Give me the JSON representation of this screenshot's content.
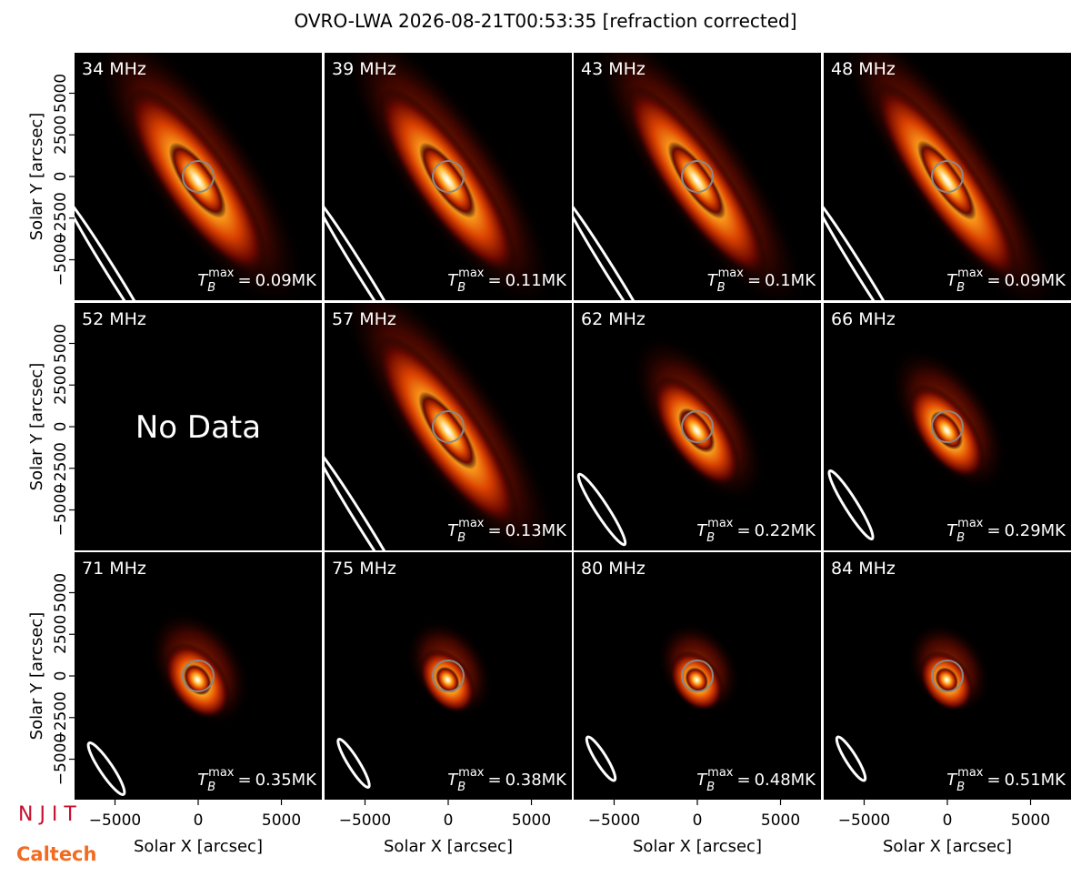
{
  "chart_data": {
    "type": "image_grid",
    "title": "OVRO-LWA 2026-08-21T00:53:35 [refraction corrected]",
    "xlabel": "Solar X [arcsec]",
    "ylabel": "Solar Y [arcsec]",
    "xlim": [
      -7430,
      7430
    ],
    "ylim": [
      -7430,
      7430
    ],
    "xticks": [
      {
        "value": -5000,
        "label": "−5000"
      },
      0,
      5000
    ],
    "yticks": [
      {
        "value": -5000,
        "label": "−5000"
      },
      {
        "value": -2500,
        "label": "−2500"
      },
      0,
      2500,
      5000
    ],
    "tb_symbol": "T",
    "tb_sub": "B",
    "tb_sup": "max",
    "tb_eq": "=",
    "no_data_text": "No Data",
    "panels": [
      {
        "label": "34 MHz",
        "tb_max": "0.09MK"
      },
      {
        "label": "39 MHz",
        "tb_max": "0.11MK"
      },
      {
        "label": "43 MHz",
        "tb_max": "0.1MK"
      },
      {
        "label": "48 MHz",
        "tb_max": "0.09MK"
      },
      {
        "label": "52 MHz",
        "no_data": true
      },
      {
        "label": "57 MHz",
        "tb_max": "0.13MK"
      },
      {
        "label": "62 MHz",
        "tb_max": "0.22MK"
      },
      {
        "label": "66 MHz",
        "tb_max": "0.29MK"
      },
      {
        "label": "71 MHz",
        "tb_max": "0.35MK"
      },
      {
        "label": "75 MHz",
        "tb_max": "0.38MK"
      },
      {
        "label": "80 MHz",
        "tb_max": "0.48MK"
      },
      {
        "label": "84 MHz",
        "tb_max": "0.51MK"
      }
    ],
    "logos": {
      "njit": "N J I T",
      "caltech": "Caltech"
    }
  }
}
